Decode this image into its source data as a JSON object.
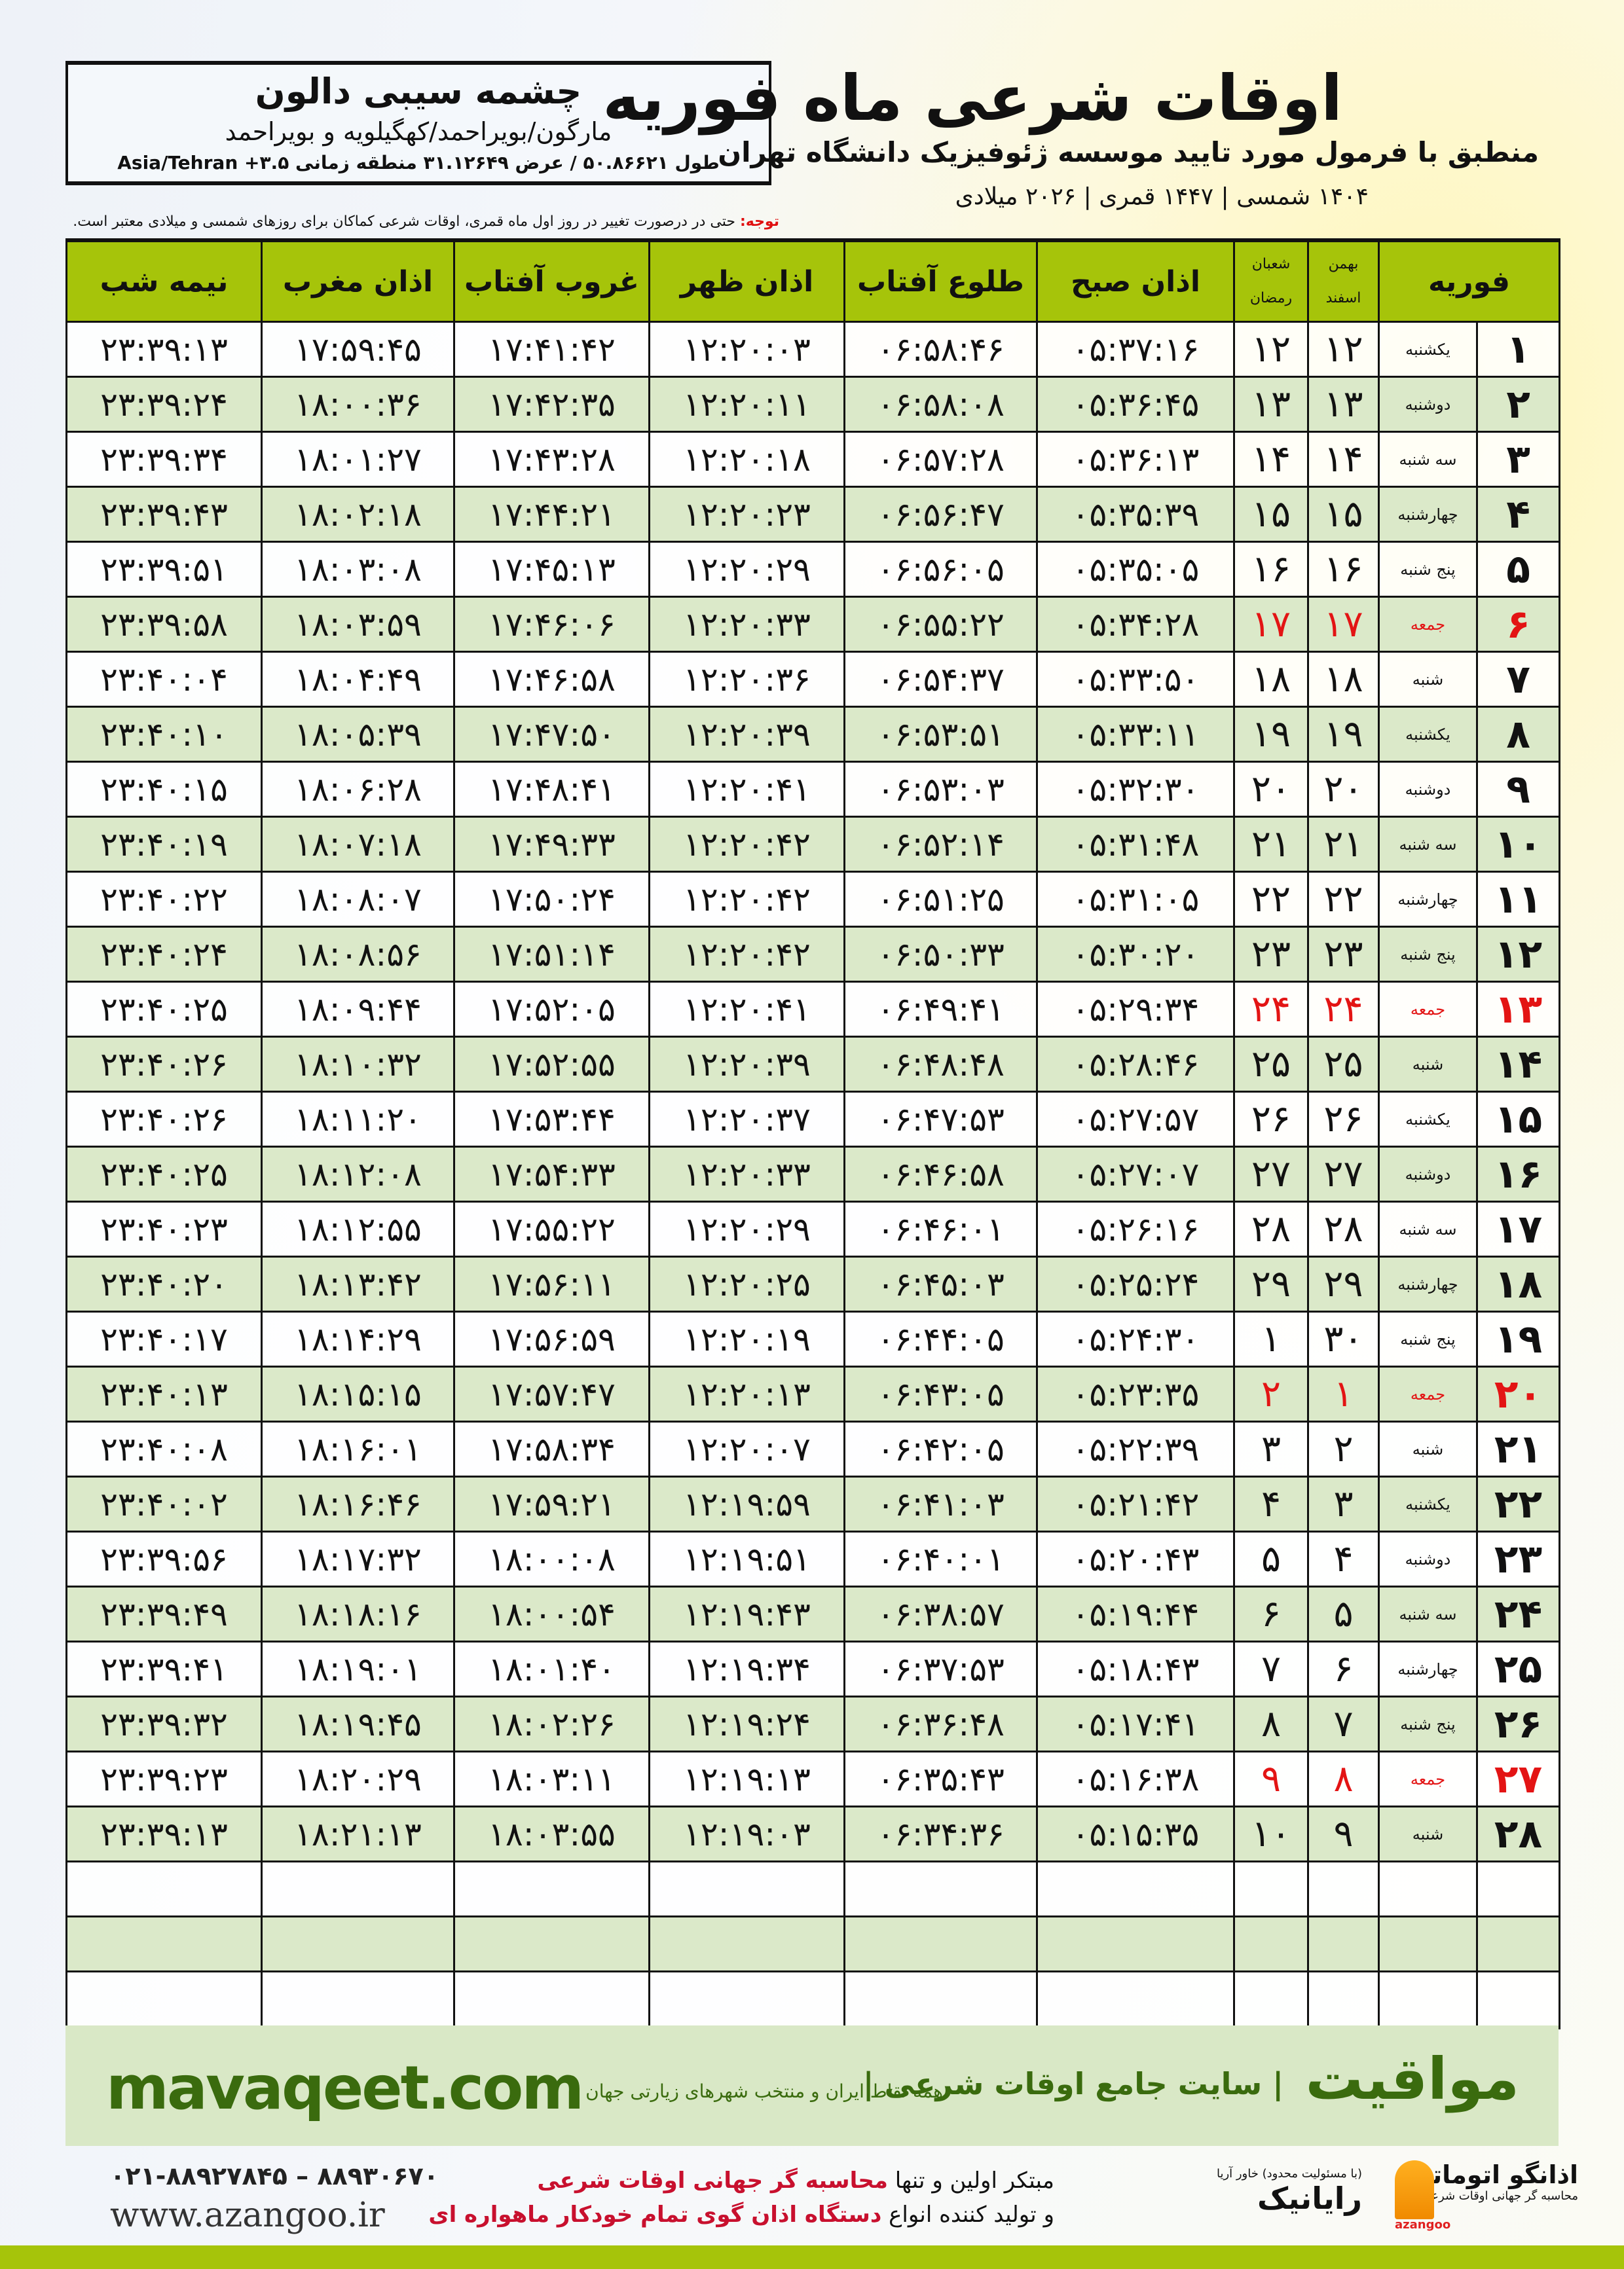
{
  "location": {
    "city": "چشمه سیبی دالون",
    "province": "مارگون/بویراحمد/کهگیلویه و بویراحمد",
    "coords": "طول ۵۰.۸۶۶۲۱ / عرض ۳۱.۱۲۶۴۹ منطقه زمانی ۳.۵+ Asia/Tehran"
  },
  "header": {
    "title": "اوقات شرعی ماه فوریه",
    "subtitle": "منطبق با فرمول مورد تایید موسسه ژئوفیزیک دانشگاه تهران",
    "dates": "۱۴۰۴ شمسی | ۱۴۴۷ قمری | ۲۰۲۶ میلادی",
    "notice_label": "توجه:",
    "notice_text": " حتی در درصورت تغییر در روز اول ماه قمری، اوقات شرعی کماکان برای روزهای شمسی و میلادی معتبر است."
  },
  "table": {
    "headers": {
      "month": "فوریه",
      "solar_top": "بهمن",
      "solar_bottom": "اسفند",
      "lunar_top": "شعبان",
      "lunar_bottom": "رمضان",
      "sobh": "اذان صبح",
      "tolu": "طلوع آفتاب",
      "zohr": "اذان ظهر",
      "ghurub": "غروب آفتاب",
      "maghreb": "اذان مغرب",
      "nimeh": "نیمه شب"
    },
    "holiday_color": "#e31414",
    "header_color": "#a6c40a",
    "rows": [
      [
        "۱",
        "یکشنبه",
        "۱۲",
        "۱۲",
        "۰۵:۳۷:۱۶",
        "۰۶:۵۸:۴۶",
        "۱۲:۲۰:۰۳",
        "۱۷:۴۱:۴۲",
        "۱۷:۵۹:۴۵",
        "۲۳:۳۹:۱۳"
      ],
      [
        "۲",
        "دوشنبه",
        "۱۳",
        "۱۳",
        "۰۵:۳۶:۴۵",
        "۰۶:۵۸:۰۸",
        "۱۲:۲۰:۱۱",
        "۱۷:۴۲:۳۵",
        "۱۸:۰۰:۳۶",
        "۲۳:۳۹:۲۴"
      ],
      [
        "۳",
        "سه شنبه",
        "۱۴",
        "۱۴",
        "۰۵:۳۶:۱۳",
        "۰۶:۵۷:۲۸",
        "۱۲:۲۰:۱۸",
        "۱۷:۴۳:۲۸",
        "۱۸:۰۱:۲۷",
        "۲۳:۳۹:۳۴"
      ],
      [
        "۴",
        "چهارشنبه",
        "۱۵",
        "۱۵",
        "۰۵:۳۵:۳۹",
        "۰۶:۵۶:۴۷",
        "۱۲:۲۰:۲۳",
        "۱۷:۴۴:۲۱",
        "۱۸:۰۲:۱۸",
        "۲۳:۳۹:۴۳"
      ],
      [
        "۵",
        "پنج شنبه",
        "۱۶",
        "۱۶",
        "۰۵:۳۵:۰۵",
        "۰۶:۵۶:۰۵",
        "۱۲:۲۰:۲۹",
        "۱۷:۴۵:۱۳",
        "۱۸:۰۳:۰۸",
        "۲۳:۳۹:۵۱"
      ],
      [
        "۶",
        "جمعه",
        "۱۷",
        "۱۷",
        "۰۵:۳۴:۲۸",
        "۰۶:۵۵:۲۲",
        "۱۲:۲۰:۳۳",
        "۱۷:۴۶:۰۶",
        "۱۸:۰۳:۵۹",
        "۲۳:۳۹:۵۸"
      ],
      [
        "۷",
        "شنبه",
        "۱۸",
        "۱۸",
        "۰۵:۳۳:۵۰",
        "۰۶:۵۴:۳۷",
        "۱۲:۲۰:۳۶",
        "۱۷:۴۶:۵۸",
        "۱۸:۰۴:۴۹",
        "۲۳:۴۰:۰۴"
      ],
      [
        "۸",
        "یکشنبه",
        "۱۹",
        "۱۹",
        "۰۵:۳۳:۱۱",
        "۰۶:۵۳:۵۱",
        "۱۲:۲۰:۳۹",
        "۱۷:۴۷:۵۰",
        "۱۸:۰۵:۳۹",
        "۲۳:۴۰:۱۰"
      ],
      [
        "۹",
        "دوشنبه",
        "۲۰",
        "۲۰",
        "۰۵:۳۲:۳۰",
        "۰۶:۵۳:۰۳",
        "۱۲:۲۰:۴۱",
        "۱۷:۴۸:۴۱",
        "۱۸:۰۶:۲۸",
        "۲۳:۴۰:۱۵"
      ],
      [
        "۱۰",
        "سه شنبه",
        "۲۱",
        "۲۱",
        "۰۵:۳۱:۴۸",
        "۰۶:۵۲:۱۴",
        "۱۲:۲۰:۴۲",
        "۱۷:۴۹:۳۳",
        "۱۸:۰۷:۱۸",
        "۲۳:۴۰:۱۹"
      ],
      [
        "۱۱",
        "چهارشنبه",
        "۲۲",
        "۲۲",
        "۰۵:۳۱:۰۵",
        "۰۶:۵۱:۲۵",
        "۱۲:۲۰:۴۲",
        "۱۷:۵۰:۲۴",
        "۱۸:۰۸:۰۷",
        "۲۳:۴۰:۲۲"
      ],
      [
        "۱۲",
        "پنج شنبه",
        "۲۳",
        "۲۳",
        "۰۵:۳۰:۲۰",
        "۰۶:۵۰:۳۳",
        "۱۲:۲۰:۴۲",
        "۱۷:۵۱:۱۴",
        "۱۸:۰۸:۵۶",
        "۲۳:۴۰:۲۴"
      ],
      [
        "۱۳",
        "جمعه",
        "۲۴",
        "۲۴",
        "۰۵:۲۹:۳۴",
        "۰۶:۴۹:۴۱",
        "۱۲:۲۰:۴۱",
        "۱۷:۵۲:۰۵",
        "۱۸:۰۹:۴۴",
        "۲۳:۴۰:۲۵"
      ],
      [
        "۱۴",
        "شنبه",
        "۲۵",
        "۲۵",
        "۰۵:۲۸:۴۶",
        "۰۶:۴۸:۴۸",
        "۱۲:۲۰:۳۹",
        "۱۷:۵۲:۵۵",
        "۱۸:۱۰:۳۲",
        "۲۳:۴۰:۲۶"
      ],
      [
        "۱۵",
        "یکشنبه",
        "۲۶",
        "۲۶",
        "۰۵:۲۷:۵۷",
        "۰۶:۴۷:۵۳",
        "۱۲:۲۰:۳۷",
        "۱۷:۵۳:۴۴",
        "۱۸:۱۱:۲۰",
        "۲۳:۴۰:۲۶"
      ],
      [
        "۱۶",
        "دوشنبه",
        "۲۷",
        "۲۷",
        "۰۵:۲۷:۰۷",
        "۰۶:۴۶:۵۸",
        "۱۲:۲۰:۳۳",
        "۱۷:۵۴:۳۳",
        "۱۸:۱۲:۰۸",
        "۲۳:۴۰:۲۵"
      ],
      [
        "۱۷",
        "سه شنبه",
        "۲۸",
        "۲۸",
        "۰۵:۲۶:۱۶",
        "۰۶:۴۶:۰۱",
        "۱۲:۲۰:۲۹",
        "۱۷:۵۵:۲۲",
        "۱۸:۱۲:۵۵",
        "۲۳:۴۰:۲۳"
      ],
      [
        "۱۸",
        "چهارشنبه",
        "۲۹",
        "۲۹",
        "۰۵:۲۵:۲۴",
        "۰۶:۴۵:۰۳",
        "۱۲:۲۰:۲۵",
        "۱۷:۵۶:۱۱",
        "۱۸:۱۳:۴۲",
        "۲۳:۴۰:۲۰"
      ],
      [
        "۱۹",
        "پنج شنبه",
        "۳۰",
        "۱",
        "۰۵:۲۴:۳۰",
        "۰۶:۴۴:۰۵",
        "۱۲:۲۰:۱۹",
        "۱۷:۵۶:۵۹",
        "۱۸:۱۴:۲۹",
        "۲۳:۴۰:۱۷"
      ],
      [
        "۲۰",
        "جمعه",
        "۱",
        "۲",
        "۰۵:۲۳:۳۵",
        "۰۶:۴۳:۰۵",
        "۱۲:۲۰:۱۳",
        "۱۷:۵۷:۴۷",
        "۱۸:۱۵:۱۵",
        "۲۳:۴۰:۱۳"
      ],
      [
        "۲۱",
        "شنبه",
        "۲",
        "۳",
        "۰۵:۲۲:۳۹",
        "۰۶:۴۲:۰۵",
        "۱۲:۲۰:۰۷",
        "۱۷:۵۸:۳۴",
        "۱۸:۱۶:۰۱",
        "۲۳:۴۰:۰۸"
      ],
      [
        "۲۲",
        "یکشنبه",
        "۳",
        "۴",
        "۰۵:۲۱:۴۲",
        "۰۶:۴۱:۰۳",
        "۱۲:۱۹:۵۹",
        "۱۷:۵۹:۲۱",
        "۱۸:۱۶:۴۶",
        "۲۳:۴۰:۰۲"
      ],
      [
        "۲۳",
        "دوشنبه",
        "۴",
        "۵",
        "۰۵:۲۰:۴۳",
        "۰۶:۴۰:۰۱",
        "۱۲:۱۹:۵۱",
        "۱۸:۰۰:۰۸",
        "۱۸:۱۷:۳۲",
        "۲۳:۳۹:۵۶"
      ],
      [
        "۲۴",
        "سه شنبه",
        "۵",
        "۶",
        "۰۵:۱۹:۴۴",
        "۰۶:۳۸:۵۷",
        "۱۲:۱۹:۴۳",
        "۱۸:۰۰:۵۴",
        "۱۸:۱۸:۱۶",
        "۲۳:۳۹:۴۹"
      ],
      [
        "۲۵",
        "چهارشنبه",
        "۶",
        "۷",
        "۰۵:۱۸:۴۳",
        "۰۶:۳۷:۵۳",
        "۱۲:۱۹:۳۴",
        "۱۸:۰۱:۴۰",
        "۱۸:۱۹:۰۱",
        "۲۳:۳۹:۴۱"
      ],
      [
        "۲۶",
        "پنج شنبه",
        "۷",
        "۸",
        "۰۵:۱۷:۴۱",
        "۰۶:۳۶:۴۸",
        "۱۲:۱۹:۲۴",
        "۱۸:۰۲:۲۶",
        "۱۸:۱۹:۴۵",
        "۲۳:۳۹:۳۲"
      ],
      [
        "۲۷",
        "جمعه",
        "۸",
        "۹",
        "۰۵:۱۶:۳۸",
        "۰۶:۳۵:۴۳",
        "۱۲:۱۹:۱۳",
        "۱۸:۰۳:۱۱",
        "۱۸:۲۰:۲۹",
        "۲۳:۳۹:۲۳"
      ],
      [
        "۲۸",
        "شنبه",
        "۹",
        "۱۰",
        "۰۵:۱۵:۳۵",
        "۰۶:۳۴:۳۶",
        "۱۲:۱۹:۰۳",
        "۱۸:۰۳:۵۵",
        "۱۸:۲۱:۱۳",
        "۲۳:۳۹:۱۳"
      ]
    ]
  },
  "footer": {
    "brand": "مواقیت",
    "brand_tagline": "| سایت جامع اوقات شرعی |",
    "brand_subtagline": "همه نقاط ایران و منتخب شهرهای زیارتی جهان",
    "site": "mavaqeet.com",
    "brand_color": "#3a6b0e",
    "ad_line1_a": "مبتکر اولین و تنها ",
    "ad_line1_b": "محاسبه گر جهانی اوقات شرعی",
    "ad_line2_a": "و تولید کننده انواع ",
    "ad_line2_b": "دستگاه اذان گوی تمام خودکار ماهواره ای",
    "phone": "۰۲۱-۸۸۹۲۷۸۴۵ – ۸۸۹۳۰۶۷۰",
    "web": "www.azangoo.ir",
    "logo_azangoo": "اذانگو اتوماتیک",
    "logo_azangoo_sub": "محاسبه گر جهانی اوقات شرعی",
    "logo_azangoo_latin": "azangoo",
    "logo_rayanik": "رایانیک",
    "logo_rayanik_sub": "(با مسئولیت محدود) خاور آریا"
  }
}
